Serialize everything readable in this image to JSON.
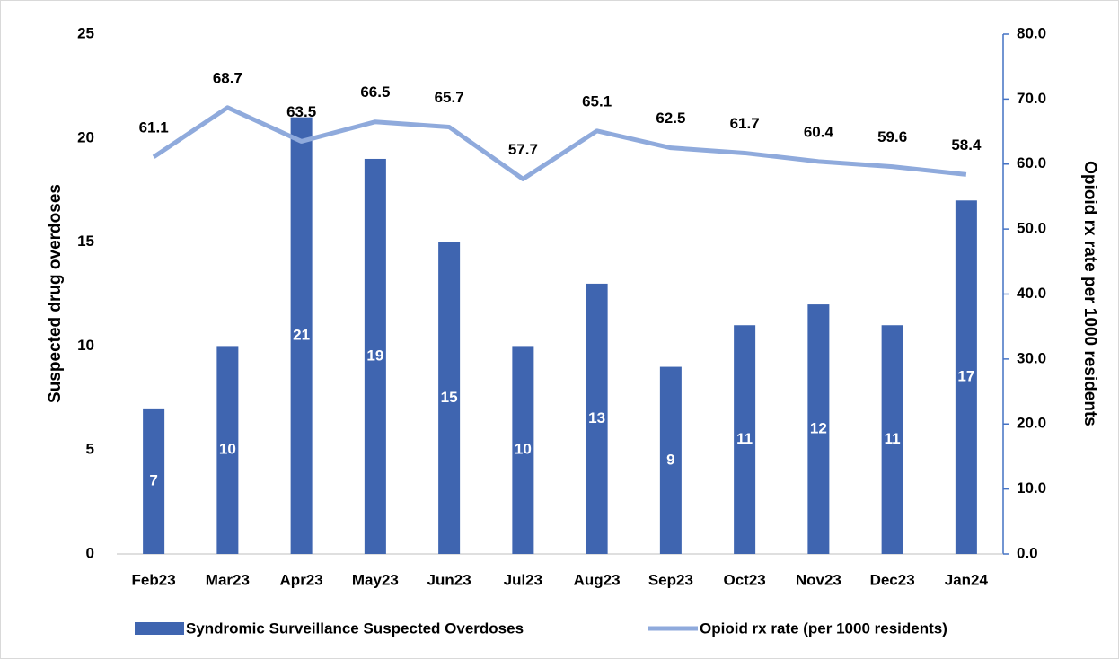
{
  "chart_data": {
    "type": "bar-line",
    "y_label": "Suspected drug overdoses",
    "y2_label": "Opioid rx rate per 1000 residents",
    "categories": [
      "Feb23",
      "Mar23",
      "Apr23",
      "May23",
      "Jun23",
      "Jul23",
      "Aug23",
      "Sep23",
      "Oct23",
      "Nov23",
      "Dec23",
      "Jan24"
    ],
    "series": [
      {
        "name": "Syndromic Surveillance Suspected Overdoses",
        "type": "bar",
        "color": "#3f65b0",
        "values": [
          7,
          10,
          21,
          19,
          15,
          10,
          13,
          9,
          11,
          12,
          11,
          17
        ]
      },
      {
        "name": "Opioid rx rate (per 1000 residents)",
        "type": "line",
        "axis": "y2",
        "color": "#8faadc",
        "values": [
          61.1,
          68.7,
          63.5,
          66.5,
          65.7,
          57.7,
          65.1,
          62.5,
          61.7,
          60.4,
          59.6,
          58.4
        ]
      }
    ],
    "ylim": [
      0,
      25
    ],
    "yticks": [
      0,
      5,
      10,
      15,
      20,
      25
    ],
    "y2lim": [
      0,
      80
    ],
    "y2ticks": [
      {
        "value": 0,
        "label": "0.0"
      },
      {
        "value": 10,
        "label": "10.0"
      },
      {
        "value": 20,
        "label": "20.0"
      },
      {
        "value": 30,
        "label": "30.0"
      },
      {
        "value": 40,
        "label": "40.0"
      },
      {
        "value": 50,
        "label": "50.0"
      },
      {
        "value": 60,
        "label": "60.0"
      },
      {
        "value": 70,
        "label": "70.0"
      },
      {
        "value": 80,
        "label": "80.0"
      }
    ],
    "axis_color": "#4472c4",
    "legend": "bottom"
  }
}
